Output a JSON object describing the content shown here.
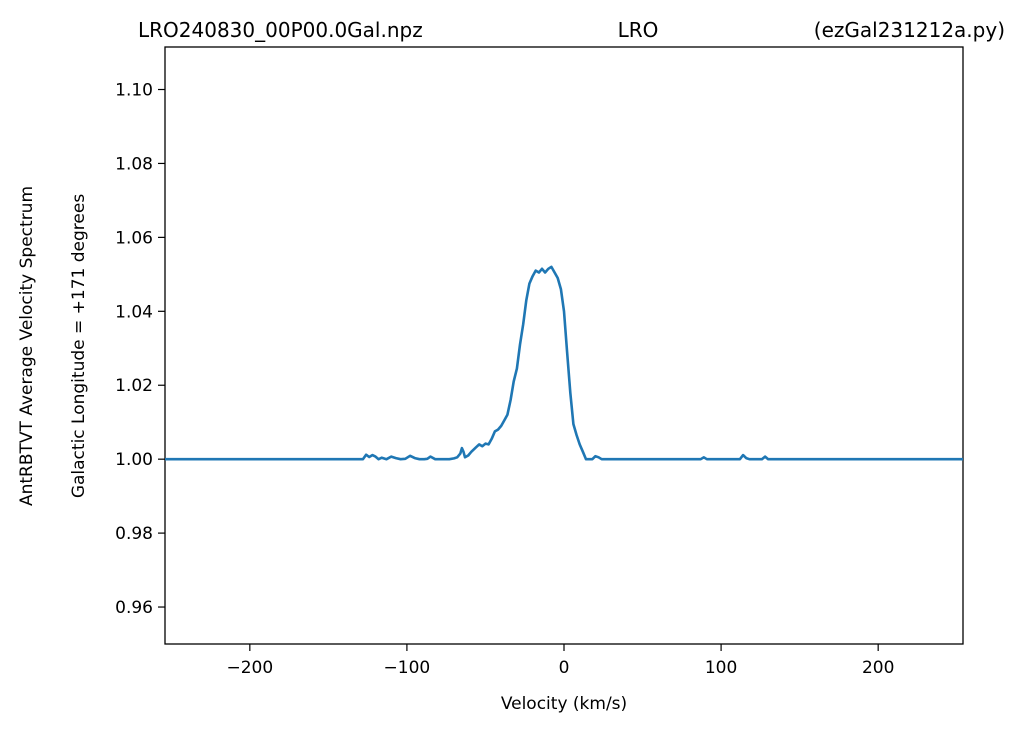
{
  "title": {
    "left": "LRO240830_00P00.0Gal.npz",
    "center": "LRO",
    "right": "(ezGal231212a.py)"
  },
  "chart_data": {
    "type": "line",
    "title": "LRO240830_00P00.0Gal.npz LRO (ezGal231212a.py)",
    "xlabel": "Velocity (km/s)",
    "ylabel": "AntRBTVT Average Velocity Spectrum",
    "ylabel2": "Galactic Longitude = +171 degrees",
    "xlim": [
      -254,
      254
    ],
    "ylim": [
      0.95,
      1.1115
    ],
    "xticks": [
      -200,
      -100,
      0,
      100,
      200
    ],
    "xtick_labels": [
      "−200",
      "−100",
      "0",
      "100",
      "200"
    ],
    "yticks": [
      0.96,
      0.98,
      1.0,
      1.02,
      1.04,
      1.06,
      1.08,
      1.1
    ],
    "ytick_labels": [
      "0.96",
      "0.98",
      "1.00",
      "1.02",
      "1.04",
      "1.06",
      "1.08",
      "1.10"
    ],
    "grid": false,
    "line_color": "#1f77b4",
    "series": [
      {
        "x": [
          -254,
          -200,
          -150,
          -128,
          -126,
          -124,
          -122,
          -120,
          -118,
          -116,
          -113,
          -110,
          -107,
          -104,
          -101,
          -98,
          -95,
          -92,
          -89,
          -87,
          -85,
          -82,
          -79,
          -76,
          -73,
          -70,
          -68,
          -66,
          -65,
          -64,
          -63,
          -61,
          -59,
          -56,
          -54,
          -52,
          -50,
          -48,
          -46,
          -44,
          -42,
          -40,
          -38,
          -36,
          -34,
          -32,
          -30,
          -28,
          -26,
          -24,
          -22,
          -20,
          -18,
          -16,
          -14,
          -12,
          -10,
          -8,
          -6,
          -4,
          -2,
          0,
          2,
          4,
          6,
          8,
          10,
          12,
          14,
          16,
          18,
          20,
          22,
          24,
          26,
          28,
          30,
          32,
          35,
          40,
          60,
          80,
          87,
          89,
          91,
          100,
          112,
          114,
          116,
          118,
          126,
          128,
          130,
          140,
          180,
          220,
          254
        ],
        "y": [
          1.0,
          1.0,
          1.0,
          1.0,
          1.0012,
          1.0006,
          1.0011,
          1.0007,
          1.0,
          1.0004,
          1.0,
          1.0007,
          1.0003,
          1.0,
          1.0001,
          1.0009,
          1.0003,
          1.0,
          1.0,
          1.0001,
          1.0007,
          1.0,
          1.0,
          1.0,
          1.0,
          1.0002,
          1.0005,
          1.0015,
          1.003,
          1.002,
          1.0005,
          1.001,
          1.002,
          1.0032,
          1.004,
          1.0035,
          1.0042,
          1.004,
          1.0055,
          1.0075,
          1.008,
          1.009,
          1.0105,
          1.012,
          1.016,
          1.021,
          1.0245,
          1.031,
          1.0365,
          1.043,
          1.0475,
          1.0495,
          1.051,
          1.0505,
          1.0515,
          1.0505,
          1.0515,
          1.052,
          1.0505,
          1.049,
          1.046,
          1.04,
          1.029,
          1.018,
          1.0095,
          1.0065,
          1.004,
          1.002,
          1.0,
          1.0,
          1.0,
          1.0008,
          1.0005,
          1.0,
          1.0,
          1.0,
          1.0,
          1.0,
          1.0,
          1.0,
          1.0,
          1.0,
          1.0,
          1.0005,
          1.0,
          1.0,
          1.0,
          1.0011,
          1.0003,
          1.0,
          1.0,
          1.0007,
          1.0,
          1.0,
          1.0,
          1.0,
          1.0
        ]
      }
    ]
  }
}
